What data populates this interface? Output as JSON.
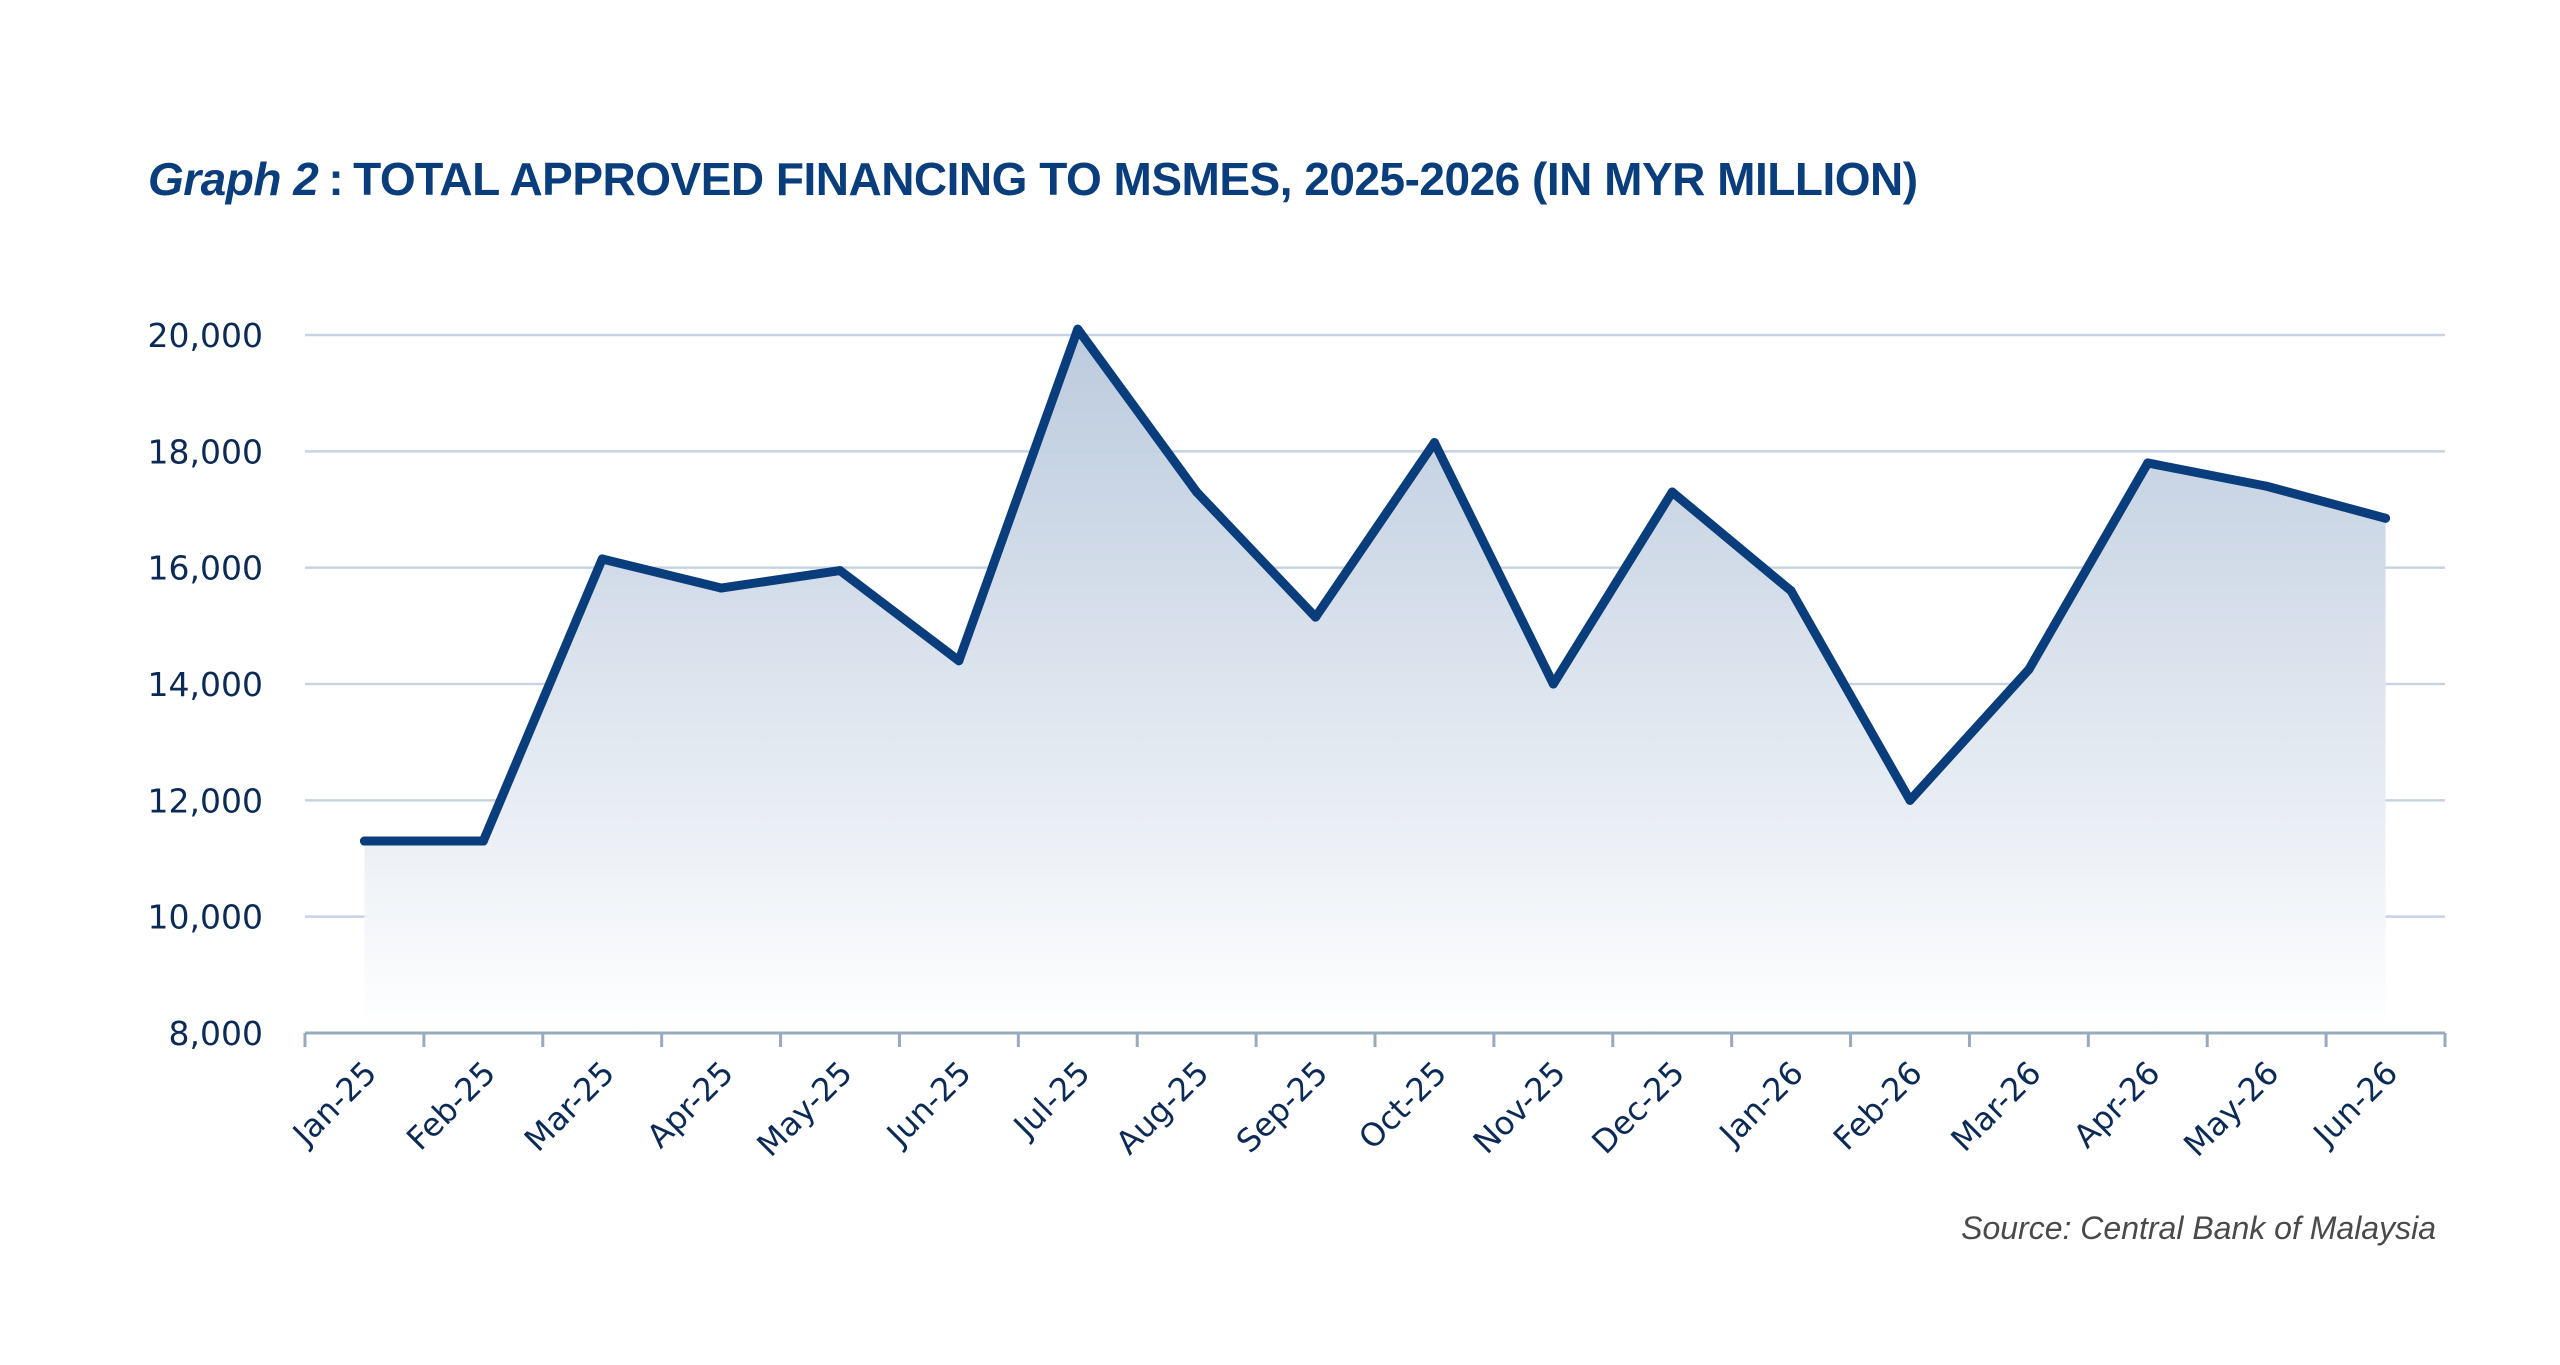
{
  "title": {
    "lead": "Graph 2",
    "separator": ":",
    "text": "TOTAL APPROVED FINANCING TO MSMES, 2025-2026 (IN MYR MILLION)"
  },
  "source": "Source: Central Bank of Malaysia",
  "colors": {
    "line": "#0a3d7c",
    "fill_top": "#b8c8dc",
    "grid": "#c7d3e2",
    "axis": "#9aaabd",
    "text": "#0b2a55"
  },
  "chart_data": {
    "type": "area",
    "categories": [
      "Jan-25",
      "Feb-25",
      "Mar-25",
      "Apr-25",
      "May-25",
      "Jun-25",
      "Jul-25",
      "Aug-25",
      "Sep-25",
      "Oct-25",
      "Nov-25",
      "Dec-25",
      "Jan-26",
      "Feb-26",
      "Mar-26",
      "Apr-26",
      "May-26",
      "Jun-26"
    ],
    "series": [
      {
        "values": [
          11300,
          11300,
          16150,
          15650,
          15950,
          14400,
          20100,
          17300,
          15150,
          18150,
          14000,
          17300,
          15600,
          12000,
          14250,
          17800,
          17400,
          16850
        ]
      }
    ],
    "ylim": [
      8000,
      20000
    ],
    "yticks": [
      8000,
      10000,
      12000,
      14000,
      16000,
      18000,
      20000
    ],
    "ytick_labels": [
      "8,000",
      "10,000",
      "12,000",
      "14,000",
      "16,000",
      "18,000",
      "20,000"
    ],
    "grid": true,
    "legend": "none",
    "xlabel": "",
    "ylabel": ""
  }
}
